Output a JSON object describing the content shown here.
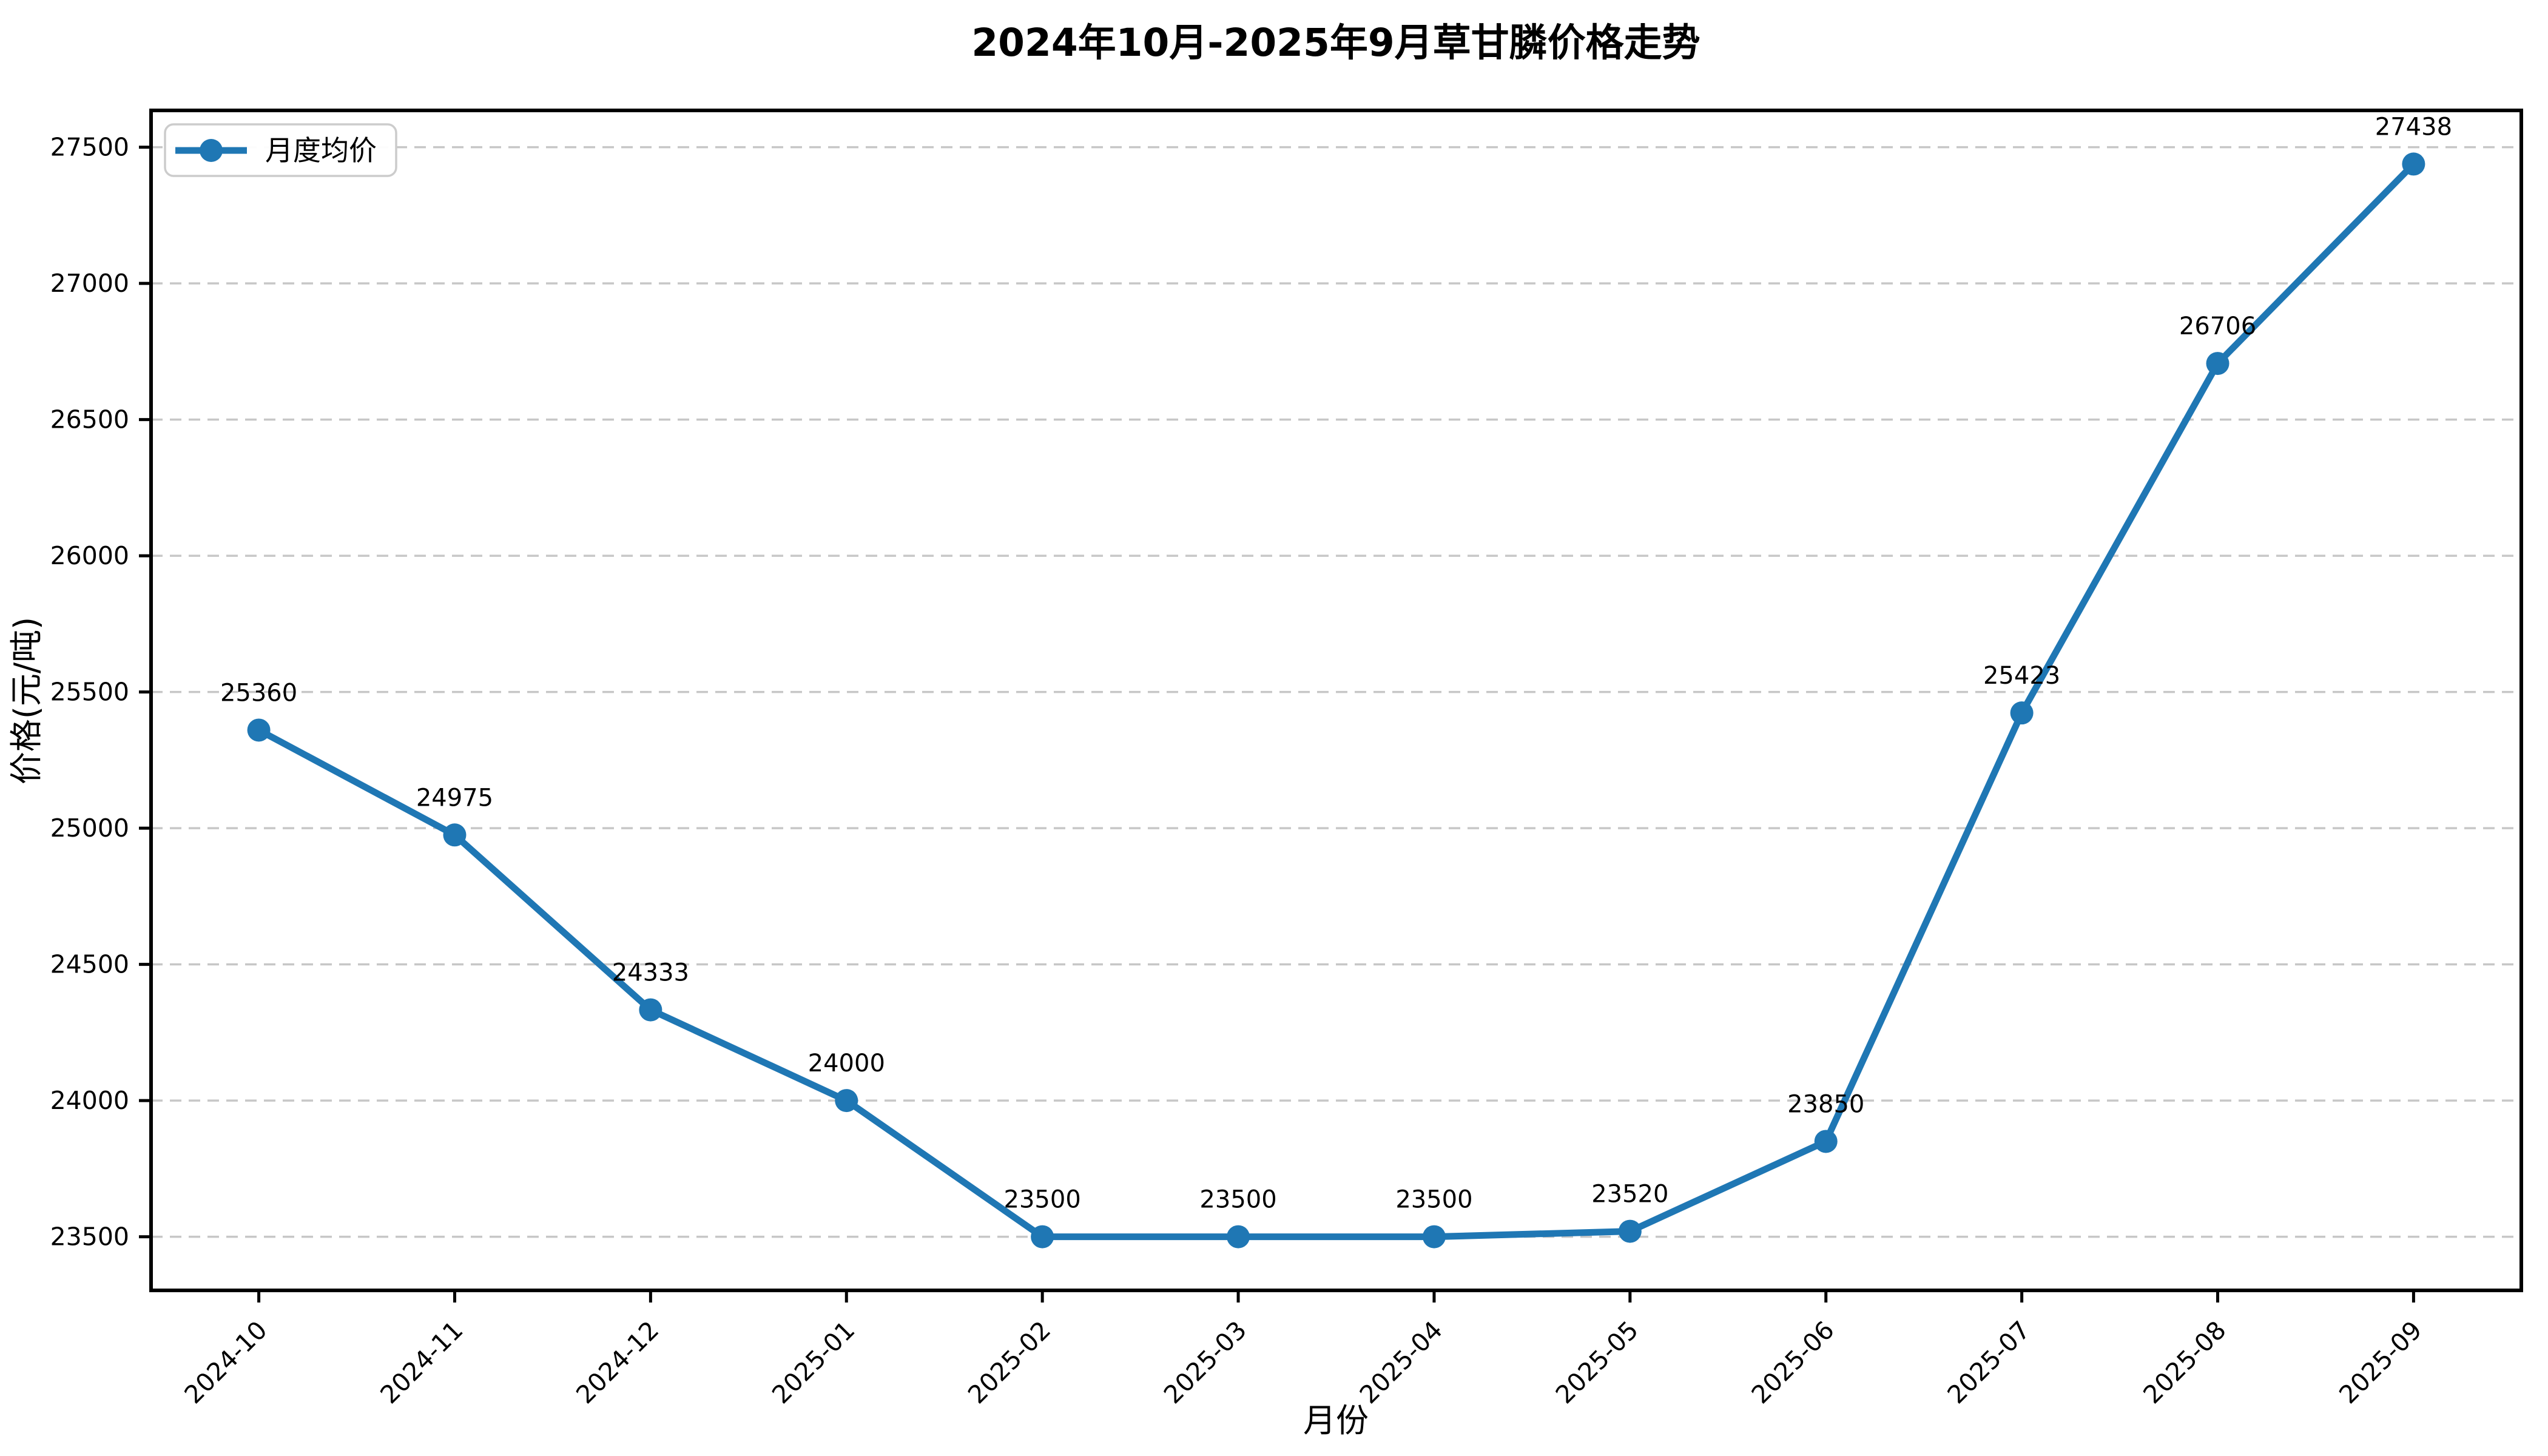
{
  "figure": {
    "background": "#ffffff"
  },
  "chart_data": {
    "type": "line",
    "title": "2024年10月-2025年9月草甘膦价格走势",
    "xlabel": "月份",
    "ylabel": "价格(元/吨)",
    "categories": [
      "2024-10",
      "2024-11",
      "2024-12",
      "2025-01",
      "2025-02",
      "2025-03",
      "2025-04",
      "2025-05",
      "2025-06",
      "2025-07",
      "2025-08",
      "2025-09"
    ],
    "series": [
      {
        "name": "月度均价",
        "values": [
          25360,
          24975,
          24333,
          24000,
          23500,
          23500,
          23500,
          23520,
          23850,
          25423,
          26706,
          27438
        ],
        "color": "#1f77b4",
        "marker": "circle"
      }
    ],
    "data_labels": [
      "25360",
      "24975",
      "24333",
      "24000",
      "23500",
      "23500",
      "23500",
      "23520",
      "23850",
      "25423",
      "26706",
      "27438"
    ],
    "yticks": [
      23500,
      24000,
      24500,
      25000,
      25500,
      26000,
      26500,
      27000,
      27500
    ],
    "ylim": [
      23303.1,
      27634.9
    ],
    "x_tick_rotation": 45,
    "grid": {
      "axis": "y",
      "style": "dashed",
      "on": true
    },
    "legend": {
      "position": "upper left",
      "entries": [
        "月度均价"
      ]
    }
  },
  "colors": {
    "line": "#1f77b4",
    "marker": "#1f77b4",
    "grid": "#c7c7c7",
    "axis": "#000000",
    "text": "#000000",
    "legend_border": "#cccccc",
    "legend_background": "#ffffff",
    "background": "#ffffff"
  }
}
